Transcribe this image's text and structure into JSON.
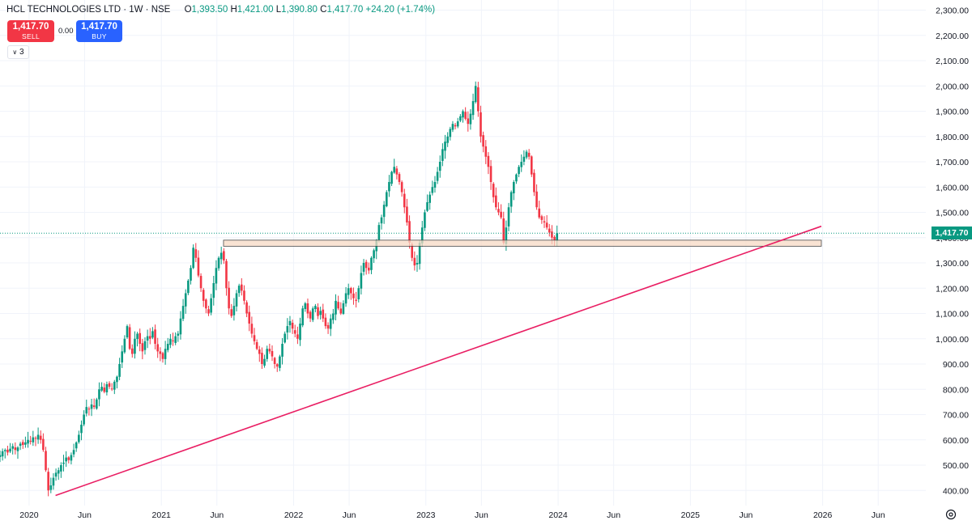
{
  "header": {
    "symbol": "HCL TECHNOLOGIES LTD · 1W · NSE",
    "open_label": "O",
    "open": "1,393.50",
    "high_label": "H",
    "high": "1,421.00",
    "low_label": "L",
    "low": "1,390.80",
    "close_label": "C",
    "close": "1,417.70",
    "change": "+24.20 (+1.74%)"
  },
  "trade": {
    "sell_price": "1,417.70",
    "sell_label": "SELL",
    "spread": "0.00",
    "buy_price": "1,417.70",
    "buy_label": "BUY"
  },
  "indicator_toggle": {
    "count": "3"
  },
  "last_price_label": "1,417.70",
  "colors": {
    "up": "#089981",
    "down": "#f23645",
    "trendline": "#e91e63",
    "zone_fill": "#f7d9c4",
    "zone_border": "#4a4a4a",
    "grid": "#f0f3fa",
    "text": "#131722"
  },
  "chart_data": {
    "type": "candlestick",
    "title": "HCL TECHNOLOGIES LTD · 1W · NSE",
    "y_axis": {
      "min": 340,
      "max": 2340,
      "ticks": [
        "2,300.00",
        "2,200.00",
        "2,100.00",
        "2,000.00",
        "1,900.00",
        "1,800.00",
        "1,700.00",
        "1,600.00",
        "1,500.00",
        "1,400.00",
        "1,300.00",
        "1,200.00",
        "1,100.00",
        "1,000.00",
        "900.00",
        "800.00",
        "700.00",
        "600.00",
        "500.00",
        "400.00"
      ],
      "tick_values": [
        2300,
        2200,
        2100,
        2000,
        1900,
        1800,
        1700,
        1600,
        1500,
        1400,
        1300,
        1200,
        1100,
        1000,
        900,
        800,
        700,
        600,
        500,
        400
      ]
    },
    "x_axis": {
      "start": 2019.78,
      "end": 2026.78,
      "labels": [
        {
          "t": 2020.0,
          "text": "2020"
        },
        {
          "t": 2020.42,
          "text": "Jun"
        },
        {
          "t": 2021.0,
          "text": "2021"
        },
        {
          "t": 2021.42,
          "text": "Jun"
        },
        {
          "t": 2022.0,
          "text": "2022"
        },
        {
          "t": 2022.42,
          "text": "Jun"
        },
        {
          "t": 2023.0,
          "text": "2023"
        },
        {
          "t": 2023.42,
          "text": "Jun"
        },
        {
          "t": 2024.0,
          "text": "2024"
        },
        {
          "t": 2024.42,
          "text": "Jun"
        },
        {
          "t": 2025.0,
          "text": "2025"
        },
        {
          "t": 2025.42,
          "text": "Jun"
        },
        {
          "t": 2026.0,
          "text": "2026"
        },
        {
          "t": 2026.42,
          "text": "Jun"
        }
      ]
    },
    "closes_weekly_start": 2019.78,
    "closes_weekly": [
      540,
      555,
      560,
      550,
      565,
      575,
      560,
      570,
      585,
      580,
      590,
      600,
      595,
      610,
      605,
      620,
      600,
      560,
      480,
      400,
      420,
      450,
      470,
      480,
      500,
      510,
      530,
      520,
      540,
      560,
      590,
      620,
      660,
      700,
      730,
      720,
      740,
      730,
      760,
      800,
      810,
      790,
      820,
      810,
      800,
      830,
      850,
      900,
      950,
      1000,
      1050,
      960,
      940,
      1000,
      1020,
      980,
      950,
      990,
      1010,
      1000,
      1030,
      980,
      950,
      940,
      920,
      960,
      980,
      1000,
      990,
      1010,
      1020,
      1080,
      1130,
      1180,
      1230,
      1280,
      1360,
      1320,
      1250,
      1200,
      1150,
      1120,
      1100,
      1160,
      1220,
      1280,
      1320,
      1340,
      1310,
      1200,
      1120,
      1090,
      1130,
      1180,
      1210,
      1190,
      1150,
      1100,
      1060,
      1020,
      990,
      960,
      940,
      900,
      920,
      960,
      950,
      930,
      900,
      890,
      930,
      980,
      1020,
      1050,
      1070,
      1040,
      1020,
      1000,
      1060,
      1120,
      1140,
      1100,
      1080,
      1120,
      1130,
      1090,
      1110,
      1080,
      1050,
      1040,
      1080,
      1100,
      1150,
      1120,
      1100,
      1140,
      1180,
      1200,
      1180,
      1160,
      1150,
      1200,
      1260,
      1300,
      1280,
      1270,
      1320,
      1350,
      1390,
      1450,
      1480,
      1530,
      1580,
      1620,
      1660,
      1680,
      1650,
      1620,
      1580,
      1520,
      1460,
      1380,
      1320,
      1290,
      1300,
      1380,
      1440,
      1500,
      1540,
      1570,
      1600,
      1620,
      1660,
      1700,
      1750,
      1780,
      1800,
      1830,
      1850,
      1840,
      1860,
      1880,
      1900,
      1870,
      1850,
      1890,
      1940,
      2000,
      1900,
      1800,
      1760,
      1720,
      1680,
      1620,
      1560,
      1520,
      1500,
      1480,
      1380,
      1440,
      1520,
      1580,
      1620,
      1650,
      1680,
      1700,
      1720,
      1740,
      1720,
      1650,
      1580,
      1520,
      1480,
      1470,
      1460,
      1440,
      1420,
      1400,
      1390,
      1417.7
    ],
    "trendline": {
      "from": {
        "t": 2020.2,
        "price": 380
      },
      "to": {
        "t": 2025.99,
        "price": 1445
      }
    },
    "support_zone": {
      "t_start": 2021.47,
      "t_end": 2025.99,
      "price_low": 1366,
      "price_high": 1390
    },
    "last_price": 1417.7
  }
}
